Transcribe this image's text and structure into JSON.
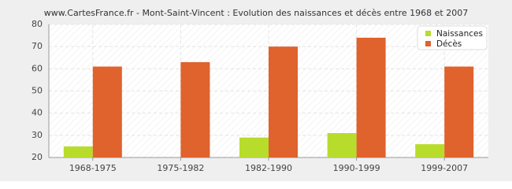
{
  "chart_data": {
    "type": "bar",
    "title": "www.CartesFrance.fr - Mont-Saint-Vincent : Evolution des naissances et décès entre 1968 et 2007",
    "categories": [
      "1968-1975",
      "1975-1982",
      "1982-1990",
      "1990-1999",
      "1999-2007"
    ],
    "series": [
      {
        "name": "Naissances",
        "color": "#b8dc2c",
        "values": [
          25,
          20,
          29,
          31,
          26
        ]
      },
      {
        "name": "Décès",
        "color": "#e0622c",
        "values": [
          61,
          63,
          70,
          74,
          61
        ]
      }
    ],
    "ylim": [
      20,
      80
    ],
    "yticks": [
      20,
      30,
      40,
      50,
      60,
      70,
      80
    ],
    "grid": true,
    "legend": "top-right"
  }
}
